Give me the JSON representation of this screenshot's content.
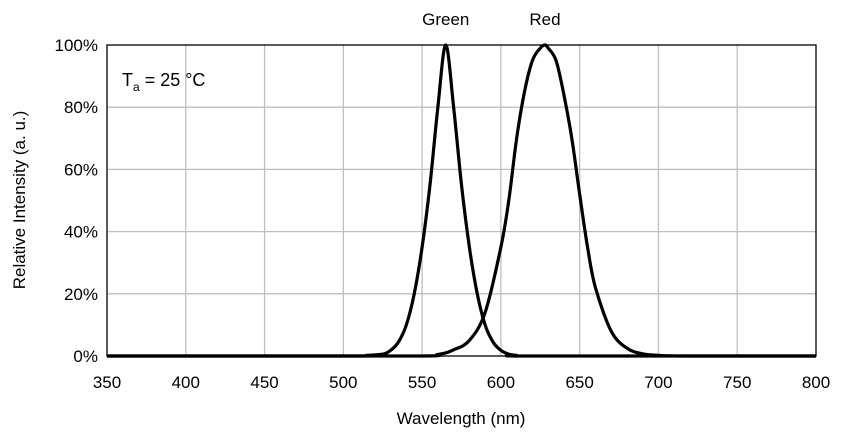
{
  "chart_data": {
    "type": "line",
    "title": "",
    "xlabel": "Wavelength (nm)",
    "ylabel": "Relative Intensity (a. u.)",
    "xlim": [
      350,
      800
    ],
    "ylim": [
      0,
      100
    ],
    "x_ticks": [
      350,
      400,
      450,
      500,
      550,
      600,
      650,
      700,
      750,
      800
    ],
    "y_ticks": [
      0,
      20,
      40,
      60,
      80,
      100
    ],
    "x_tick_labels": [
      "350",
      "400",
      "450",
      "500",
      "550",
      "600",
      "650",
      "700",
      "750",
      "800"
    ],
    "y_tick_labels": [
      "0%",
      "20%",
      "40%",
      "60%",
      "80%",
      "100%"
    ],
    "y_unit": "%",
    "grid": true,
    "line_color": "#000000",
    "grid_color": "#bfbfbf",
    "annotation": {
      "main": "T",
      "sub": "a",
      "rest": " = 25 °C"
    },
    "series": [
      {
        "name": "Green",
        "x": [
          350,
          500,
          515,
          525,
          530,
          535,
          540,
          545,
          550,
          555,
          560,
          565,
          570,
          575,
          580,
          585,
          590,
          595,
          600,
          605,
          610,
          620,
          800
        ],
        "y": [
          0,
          0,
          0.2,
          0.6,
          1.8,
          4.5,
          10,
          20,
          35,
          55,
          80,
          100,
          80,
          55,
          35,
          20,
          10,
          4.5,
          1.8,
          0.6,
          0.2,
          0,
          0
        ]
      },
      {
        "name": "Red",
        "x": [
          350,
          540,
          560,
          570,
          580,
          590,
          600,
          605,
          610,
          615,
          620,
          625,
          628,
          630,
          635,
          640,
          645,
          650,
          655,
          660,
          670,
          680,
          690,
          700,
          720,
          800
        ],
        "y": [
          0,
          0,
          0.5,
          2,
          5,
          14,
          35,
          50,
          70,
          85,
          95,
          99,
          100,
          99,
          95,
          84,
          70,
          52,
          35,
          22,
          8,
          2.5,
          0.7,
          0.2,
          0,
          0
        ]
      }
    ]
  }
}
